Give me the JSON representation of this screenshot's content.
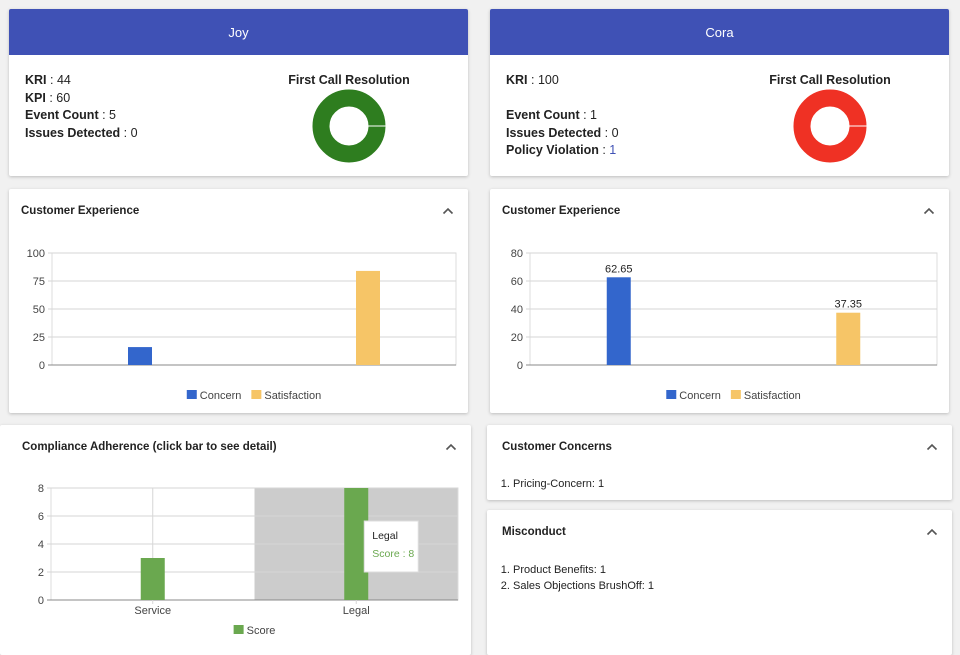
{
  "agents": [
    {
      "name": "Joy",
      "metrics": [
        {
          "label": "KRI",
          "value": 44
        },
        {
          "label": "KPI",
          "value": 60
        },
        {
          "label": "Event Count",
          "value": 5
        },
        {
          "label": "Issues Detected",
          "value": 0
        }
      ],
      "fcr": {
        "title": "First Call Resolution",
        "color": "#2e7d1f"
      },
      "customer_experience": {
        "title": "Customer Experience",
        "chart": {
          "type": "bar",
          "categories": [
            null,
            null
          ],
          "series": [
            {
              "name": "Concern",
              "color": "#3366cc",
              "values": [
                16,
                null
              ]
            },
            {
              "name": "Satisfaction",
              "color": "#f6c567",
              "values": [
                null,
                84
              ]
            }
          ],
          "ylim": [
            0,
            100
          ],
          "yticks": [
            0,
            25,
            50,
            75,
            100
          ],
          "grid": true,
          "legend": "bottom"
        }
      }
    },
    {
      "name": "Cora",
      "metrics": [
        {
          "label": "KRI",
          "value": 100
        },
        {
          "label": "Event Count",
          "value": 1
        },
        {
          "label": "Issues Detected",
          "value": 0
        },
        {
          "label": "Policy Violation",
          "value": 1
        }
      ],
      "fcr": {
        "title": "First Call Resolution",
        "color": "#ef3124"
      },
      "customer_experience": {
        "title": "Customer Experience",
        "chart": {
          "type": "bar",
          "categories": [
            null,
            null
          ],
          "series": [
            {
              "name": "Concern",
              "color": "#3366cc",
              "values": [
                62.65,
                null
              ]
            },
            {
              "name": "Satisfaction",
              "color": "#f6c567",
              "values": [
                null,
                37.35
              ]
            }
          ],
          "ylim": [
            0,
            80
          ],
          "yticks": [
            0,
            20,
            40,
            60,
            80
          ],
          "grid": true,
          "data_labels": true,
          "legend": "bottom"
        }
      }
    }
  ],
  "compliance": {
    "title": "Compliance Adherence (click bar to see detail)",
    "chart": {
      "type": "bar",
      "categories": [
        "Service",
        "Legal"
      ],
      "series": [
        {
          "name": "Score",
          "color": "#6aa84f",
          "values": [
            3,
            8
          ]
        }
      ],
      "ylim": [
        0,
        8
      ],
      "yticks": [
        0,
        2,
        4,
        6,
        8
      ],
      "grid": true,
      "vertical_grid": true,
      "legend": "bottom",
      "tooltip": {
        "title": "Legal",
        "label": "Score : 8"
      }
    }
  },
  "customer_concerns": {
    "title": "Customer Concerns",
    "items": [
      "Pricing-Concern: 1"
    ]
  },
  "misconduct": {
    "title": "Misconduct",
    "items": [
      "Product Benefits: 1",
      "Sales Objections BrushOff: 1"
    ]
  }
}
